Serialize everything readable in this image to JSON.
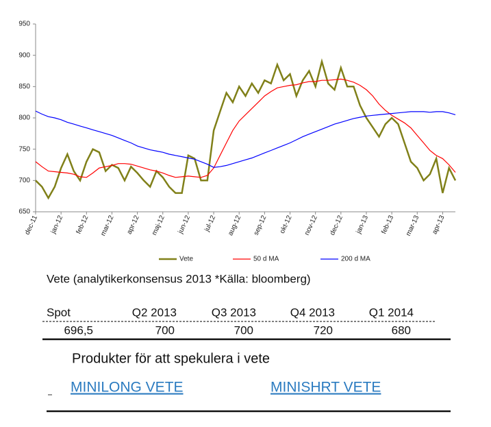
{
  "chart_data": {
    "type": "line",
    "categories": [
      "dec-11",
      null,
      null,
      null,
      "jan-12",
      null,
      null,
      null,
      "feb-12",
      null,
      null,
      null,
      "mar-12",
      null,
      null,
      null,
      "apr-12",
      null,
      null,
      null,
      "maj-12",
      null,
      null,
      null,
      "jun-12",
      null,
      null,
      null,
      "jul-12",
      null,
      null,
      null,
      "aug-12",
      null,
      null,
      null,
      "sep-12",
      null,
      null,
      null,
      "okt-12",
      null,
      null,
      null,
      "nov-12",
      null,
      null,
      null,
      "dec-12",
      null,
      null,
      null,
      "jan-13",
      null,
      null,
      null,
      "feb-13",
      null,
      null,
      null,
      "mar-13",
      null,
      null,
      null,
      "apr-13",
      null,
      null
    ],
    "series": [
      {
        "name": "Vete",
        "color": "#808019",
        "values": [
          700,
          690,
          672,
          690,
          720,
          742,
          715,
          700,
          730,
          750,
          745,
          715,
          725,
          720,
          700,
          722,
          712,
          700,
          690,
          715,
          705,
          690,
          680,
          680,
          740,
          735,
          700,
          700,
          780,
          810,
          840,
          825,
          850,
          835,
          855,
          840,
          860,
          855,
          885,
          860,
          870,
          835,
          860,
          875,
          850,
          890,
          855,
          845,
          880,
          850,
          850,
          820,
          800,
          785,
          770,
          790,
          800,
          790,
          760,
          730,
          720,
          700,
          710,
          735,
          680,
          720,
          700
        ]
      },
      {
        "name": "50 d MA",
        "color": "#ff0000",
        "values": [
          730,
          722,
          715,
          714,
          713,
          712,
          710,
          706,
          705,
          712,
          720,
          722,
          724,
          727,
          727,
          726,
          723,
          720,
          717,
          715,
          712,
          708,
          705,
          706,
          707,
          706,
          705,
          708,
          720,
          740,
          760,
          780,
          795,
          805,
          815,
          825,
          835,
          842,
          848,
          850,
          852,
          853,
          856,
          858,
          858,
          860,
          860,
          861,
          862,
          860,
          857,
          852,
          845,
          835,
          822,
          812,
          804,
          798,
          792,
          784,
          772,
          760,
          748,
          740,
          735,
          725,
          713
        ]
      },
      {
        "name": "200 d MA",
        "color": "#0000ff",
        "values": [
          811,
          806,
          802,
          800,
          797,
          793,
          790,
          787,
          784,
          781,
          778,
          775,
          772,
          768,
          764,
          760,
          755,
          752,
          749,
          747,
          745,
          742,
          740,
          738,
          736,
          734,
          730,
          726,
          721,
          722,
          724,
          727,
          730,
          733,
          736,
          740,
          744,
          748,
          752,
          756,
          760,
          765,
          770,
          774,
          778,
          782,
          786,
          790,
          793,
          796,
          799,
          801,
          803,
          804,
          805,
          806,
          807,
          808,
          809,
          810,
          810,
          810,
          809,
          810,
          810,
          808,
          805
        ]
      }
    ],
    "ylim": [
      650,
      950
    ],
    "yticks": [
      650,
      700,
      750,
      800,
      850,
      900,
      950
    ],
    "grid": false,
    "legend": "bottom"
  },
  "table": {
    "title": "Vete (analytikerkonsensus 2013 *Källa: bloomberg)",
    "header": [
      "Spot",
      "Q2 2013",
      "Q3 2013",
      "Q4 2013",
      "Q1 2014"
    ],
    "rows": [
      [
        "696,5",
        "700",
        "700",
        "720",
        "680"
      ]
    ]
  },
  "products": {
    "heading": "Produkter för att spekulera i vete",
    "links": [
      "MINILONG VETE",
      "MINISHRT VETE"
    ]
  }
}
